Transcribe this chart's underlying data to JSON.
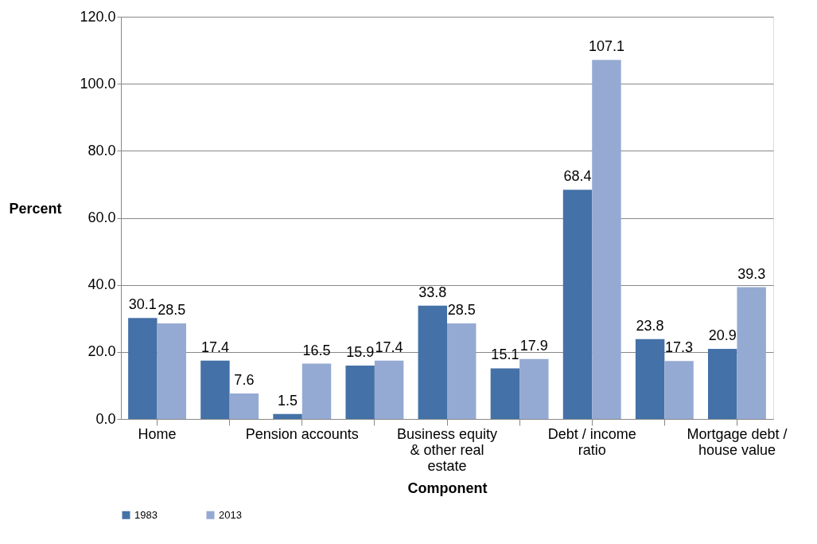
{
  "chart_data": {
    "type": "bar",
    "xlabel": "Component",
    "ylabel": "Percent",
    "categories": [
      "Home",
      null,
      "Pension accounts",
      null,
      "Business equity & other real estate",
      null,
      "Debt / income ratio",
      null,
      "Mortgage debt / house value"
    ],
    "series": [
      {
        "name": "1983",
        "color": "#4471a7",
        "values": [
          30.1,
          17.4,
          1.5,
          15.9,
          33.8,
          15.1,
          68.4,
          23.8,
          20.9
        ]
      },
      {
        "name": "2013",
        "color": "#95aad3",
        "values": [
          28.5,
          7.6,
          16.5,
          17.4,
          28.5,
          17.9,
          107.1,
          17.3,
          39.3
        ]
      }
    ],
    "ylim": [
      0,
      120
    ],
    "yticks": [
      {
        "value": 0,
        "label": "0.0"
      },
      {
        "value": 20,
        "label": "20.0"
      },
      {
        "value": 40,
        "label": "40.0"
      },
      {
        "value": 60,
        "label": "60.0"
      },
      {
        "value": 80,
        "label": "80.0"
      },
      {
        "value": 100,
        "label": "100.0"
      },
      {
        "value": 120,
        "label": "120.0"
      }
    ],
    "grid": "y",
    "legend": "bottom",
    "data_labels": true
  }
}
